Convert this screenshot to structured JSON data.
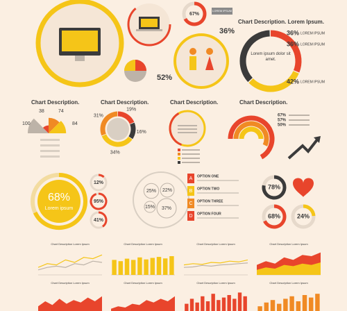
{
  "hero": {
    "ring": {
      "value": 67,
      "label": "67%"
    },
    "tag": "LOREM IPSUM",
    "stat1": "36%",
    "stat2": "52%"
  },
  "summary": {
    "title": "Chart Description. Lorem Ipsum.",
    "center": "Lorem ipsum dolor sit amet.",
    "items": [
      {
        "value": 36,
        "label": "36%",
        "text": "LOREM IPSUM",
        "color": "#e8452c"
      },
      {
        "value": 36,
        "label": "36%",
        "text": "LOREM IPSUM",
        "color": "#f5c518"
      },
      {
        "value": 42,
        "label": "42%",
        "text": "LOREM IPSUM",
        "color": "#3b3b3b"
      }
    ]
  },
  "panels": [
    {
      "title": "Chart Description.",
      "type": "radial",
      "values": [
        100,
        38,
        74,
        84
      ],
      "colors": [
        "#bdb3a8",
        "#e8452c",
        "#f08a24",
        "#f5c518"
      ]
    },
    {
      "title": "Chart Description.",
      "type": "donut",
      "values": [
        19,
        16,
        34,
        31
      ],
      "value_labels": [
        "19%",
        "16%",
        "34%",
        "31%"
      ],
      "colors": [
        "#e8452c",
        "#3b3b3b",
        "#f5c518",
        "#f08a24"
      ]
    },
    {
      "title": "Chart Description.",
      "type": "rings"
    },
    {
      "title": "Chart Description.",
      "type": "arcs",
      "values": [
        67,
        57,
        50
      ],
      "value_labels": [
        "67%",
        "57%",
        "50%"
      ],
      "colors": [
        "#e8452c",
        "#f08a24",
        "#f5c518"
      ]
    }
  ],
  "stats": {
    "main": {
      "value": 68,
      "label": "68%",
      "text": "Lorem ipsum"
    },
    "small": [
      {
        "value": 12,
        "label": "12%"
      },
      {
        "value": 95,
        "label": "95%"
      },
      {
        "value": 41,
        "label": "41%"
      }
    ]
  },
  "bubbles": [
    {
      "value": 25,
      "label": "25%"
    },
    {
      "value": 22,
      "label": "22%"
    },
    {
      "value": 15,
      "label": "15%"
    },
    {
      "value": 37,
      "label": "37%"
    }
  ],
  "options": [
    {
      "letter": "A",
      "text": "OPTION ONE",
      "color": "#e8452c"
    },
    {
      "letter": "B",
      "text": "OPTION TWO",
      "color": "#f5c518"
    },
    {
      "letter": "C",
      "text": "OPTION THREE",
      "color": "#f08a24"
    },
    {
      "letter": "D",
      "text": "OPTION FOUR",
      "color": "#e8452c"
    }
  ],
  "gauges": [
    {
      "value": 78,
      "label": "78%"
    },
    {
      "value": 68,
      "label": "68%"
    },
    {
      "value": 24,
      "label": "24%"
    }
  ],
  "minis": [
    {
      "title": "Chart Description Lorem Ipsum",
      "type": "line",
      "ylim": [
        0,
        100
      ],
      "series": [
        {
          "color": "#f5c518",
          "values": [
            30,
            45,
            40,
            60,
            50,
            70,
            65,
            80
          ]
        },
        {
          "color": "#bdb3a8",
          "values": [
            20,
            30,
            35,
            30,
            45,
            40,
            55,
            50
          ]
        }
      ]
    },
    {
      "title": "Chart Description Lorem Ipsum",
      "type": "bar",
      "ylim": [
        0,
        100
      ],
      "series": [
        {
          "color": "#f5c518",
          "values": [
            60,
            55,
            65,
            60,
            70,
            62,
            68,
            72,
            66,
            75
          ]
        }
      ]
    },
    {
      "title": "Chart Description Lorem Ipsum",
      "type": "line",
      "ylim": [
        0,
        100
      ],
      "series": [
        {
          "color": "#f5c518",
          "values": [
            40,
            45,
            42,
            50,
            48,
            55,
            52,
            60
          ]
        },
        {
          "color": "#bdb3a8",
          "values": [
            30,
            32,
            38,
            35,
            40,
            42,
            45,
            48
          ]
        }
      ]
    },
    {
      "title": "Chart Description Lorem Ipsum",
      "type": "area",
      "ylim": [
        0,
        100
      ],
      "series": [
        {
          "color": "#e8452c",
          "values": [
            40,
            55,
            45,
            70,
            60,
            80,
            75,
            90
          ]
        },
        {
          "color": "#f5c518",
          "values": [
            20,
            30,
            25,
            40,
            35,
            45,
            40,
            50
          ]
        }
      ]
    },
    {
      "title": "Chart Description Lorem Ipsum",
      "type": "area",
      "ylim": [
        0,
        100
      ],
      "series": [
        {
          "color": "#e8452c",
          "values": [
            30,
            50,
            35,
            60,
            40,
            55,
            45,
            65,
            50,
            70
          ]
        }
      ]
    },
    {
      "title": "Chart Description Lorem Ipsum",
      "type": "area",
      "ylim": [
        0,
        100
      ],
      "series": [
        {
          "color": "#e8452c",
          "values": [
            20,
            30,
            25,
            40,
            35,
            55,
            45,
            60,
            50,
            70
          ]
        }
      ]
    },
    {
      "title": "Chart Description Lorem Ipsum",
      "type": "bar",
      "ylim": [
        0,
        100
      ],
      "series": [
        {
          "color": "#e8452c",
          "values": [
            40,
            60,
            45,
            70,
            50,
            80,
            55,
            65,
            75,
            60,
            85,
            70
          ]
        }
      ]
    },
    {
      "title": "Chart Description Lorem Ipsum",
      "type": "bar",
      "ylim": [
        0,
        100
      ],
      "series": [
        {
          "color": "#f08a24",
          "values": [
            30,
            45,
            55,
            40,
            60,
            70,
            50,
            75,
            65,
            80
          ]
        }
      ]
    }
  ]
}
